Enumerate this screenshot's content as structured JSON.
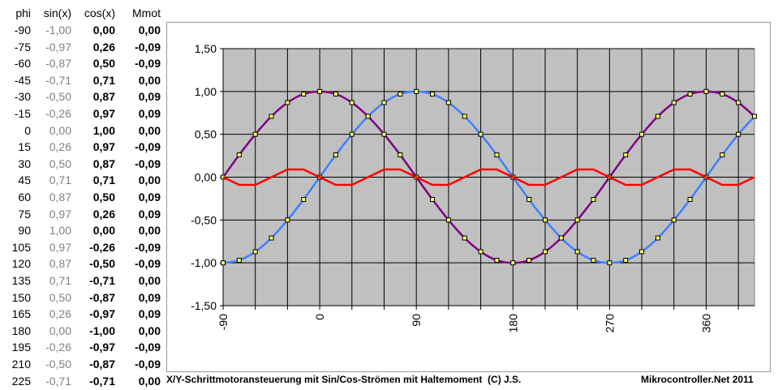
{
  "table": {
    "headers": [
      "phi",
      "sin(x)",
      "cos(x)",
      "Mmot"
    ],
    "rows": [
      [
        "-90",
        "-1,00",
        "0,00",
        "0,00"
      ],
      [
        "-75",
        "-0,97",
        "0,26",
        "-0,09"
      ],
      [
        "-60",
        "-0,87",
        "0,50",
        "-0,09"
      ],
      [
        "-45",
        "-0,71",
        "0,71",
        "0,00"
      ],
      [
        "-30",
        "-0,50",
        "0,87",
        "0,09"
      ],
      [
        "-15",
        "-0,26",
        "0,97",
        "0,09"
      ],
      [
        "0",
        "0,00",
        "1,00",
        "0,00"
      ],
      [
        "15",
        "0,26",
        "0,97",
        "-0,09"
      ],
      [
        "30",
        "0,50",
        "0,87",
        "-0,09"
      ],
      [
        "45",
        "0,71",
        "0,71",
        "0,00"
      ],
      [
        "60",
        "0,87",
        "0,50",
        "0,09"
      ],
      [
        "75",
        "0,97",
        "0,26",
        "0,09"
      ],
      [
        "90",
        "1,00",
        "0,00",
        "0,00"
      ],
      [
        "105",
        "0,97",
        "-0,26",
        "-0,09"
      ],
      [
        "120",
        "0,87",
        "-0,50",
        "-0,09"
      ],
      [
        "135",
        "0,71",
        "-0,71",
        "0,00"
      ],
      [
        "150",
        "0,50",
        "-0,87",
        "0,09"
      ],
      [
        "165",
        "0,26",
        "-0,97",
        "0,09"
      ],
      [
        "180",
        "0,00",
        "-1,00",
        "0,00"
      ],
      [
        "195",
        "-0,26",
        "-0,97",
        "-0,09"
      ],
      [
        "210",
        "-0,50",
        "-0,87",
        "-0,09"
      ],
      [
        "225",
        "-0,71",
        "-0,71",
        "0,00"
      ]
    ]
  },
  "footer": {
    "left": "X/Y-Schrittmotoransteuerung mit Sin/Cos-Strömen mit Haltemoment  (C) J.S.",
    "right": "Mikrocontroller.Net 2011"
  },
  "chart_data": {
    "type": "line",
    "xlim": [
      -90,
      405
    ],
    "ylim": [
      -1.5,
      1.5
    ],
    "x_ticks": [
      -90,
      0,
      90,
      180,
      270,
      360
    ],
    "x_tick_labels": [
      "-90",
      "0",
      "90",
      "180",
      "270",
      "360"
    ],
    "y_ticks": [
      1.5,
      1.0,
      0.5,
      0.0,
      -0.5,
      -1.0,
      -1.5
    ],
    "y_tick_labels": [
      "1,50",
      "1,00",
      "0,50",
      "0,00",
      "-0,50",
      "-1,00",
      "-1,50"
    ],
    "grid": true,
    "plot_background": "#c0c0c0",
    "x": [
      -90,
      -75,
      -60,
      -45,
      -30,
      -15,
      0,
      15,
      30,
      45,
      60,
      75,
      90,
      105,
      120,
      135,
      150,
      165,
      180,
      195,
      210,
      225,
      240,
      255,
      270,
      285,
      300,
      315,
      330,
      345,
      360,
      375,
      390,
      405
    ],
    "series": [
      {
        "color": "#800080",
        "markers": true,
        "values": [
          0.0,
          0.26,
          0.5,
          0.71,
          0.87,
          0.97,
          1.0,
          0.97,
          0.87,
          0.71,
          0.5,
          0.26,
          0.0,
          -0.26,
          -0.5,
          -0.71,
          -0.87,
          -0.97,
          -1.0,
          -0.97,
          -0.87,
          -0.71,
          -0.5,
          -0.26,
          0.0,
          0.26,
          0.5,
          0.71,
          0.87,
          0.97,
          1.0,
          0.97,
          0.87,
          0.71
        ]
      },
      {
        "color": "#3f7fff",
        "markers": true,
        "values": [
          -1.0,
          -0.97,
          -0.87,
          -0.71,
          -0.5,
          -0.26,
          0.0,
          0.26,
          0.5,
          0.71,
          0.87,
          0.97,
          1.0,
          0.97,
          0.87,
          0.71,
          0.5,
          0.26,
          0.0,
          -0.26,
          -0.5,
          -0.71,
          -0.87,
          -0.97,
          -1.0,
          -0.97,
          -0.87,
          -0.71,
          -0.5,
          -0.26,
          0.0,
          0.26,
          0.5,
          0.71
        ]
      },
      {
        "color": "#ff0000",
        "markers": false,
        "values": [
          0.0,
          -0.09,
          -0.09,
          0.0,
          0.09,
          0.09,
          0.0,
          -0.09,
          -0.09,
          0.0,
          0.09,
          0.09,
          0.0,
          -0.09,
          -0.09,
          0.0,
          0.09,
          0.09,
          0.0,
          -0.09,
          -0.09,
          0.0,
          0.09,
          0.09,
          0.0,
          -0.09,
          -0.09,
          0.0,
          0.09,
          0.09,
          0.0,
          -0.09,
          -0.09,
          0.0
        ]
      }
    ]
  }
}
